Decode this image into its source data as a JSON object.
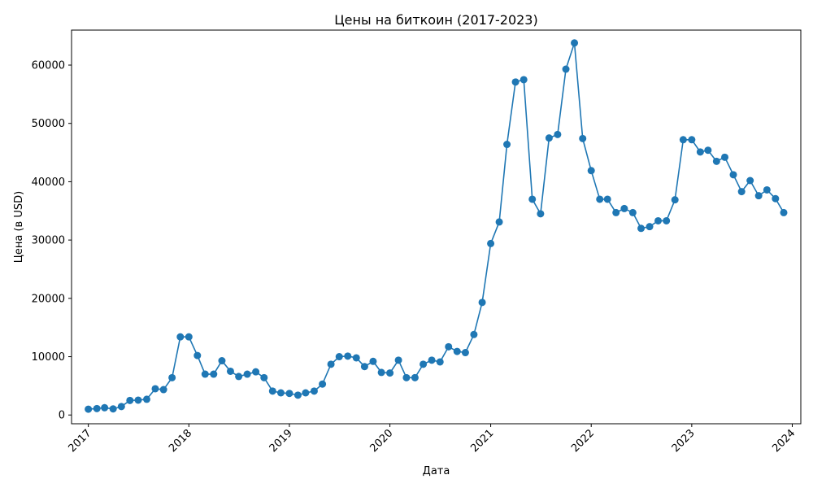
{
  "chart_data": {
    "type": "line",
    "title": "Цены на биткоин (2017-2023)",
    "xlabel": "Дата",
    "ylabel": "Цена (в USD)",
    "xlim": [
      "2016-11-01",
      "2024-02-01"
    ],
    "ylim": [
      -1500,
      66000
    ],
    "x_ticks": [
      "2017",
      "2018",
      "2019",
      "2020",
      "2021",
      "2022",
      "2023",
      "2024"
    ],
    "y_ticks": [
      0,
      10000,
      20000,
      30000,
      40000,
      50000,
      60000
    ],
    "grid": false,
    "markers": true,
    "series": [
      {
        "color": "#1f77b4",
        "x": [
          "2017-01-01",
          "2017-02-01",
          "2017-03-01",
          "2017-04-01",
          "2017-05-01",
          "2017-06-01",
          "2017-07-01",
          "2017-08-01",
          "2017-09-01",
          "2017-10-01",
          "2017-11-01",
          "2017-12-01",
          "2018-01-01",
          "2018-02-01",
          "2018-03-01",
          "2018-04-01",
          "2018-05-01",
          "2018-06-01",
          "2018-07-01",
          "2018-08-01",
          "2018-09-01",
          "2018-10-01",
          "2018-11-01",
          "2018-12-01",
          "2019-01-01",
          "2019-02-01",
          "2019-03-01",
          "2019-04-01",
          "2019-05-01",
          "2019-06-01",
          "2019-07-01",
          "2019-08-01",
          "2019-09-01",
          "2019-10-01",
          "2019-11-01",
          "2019-12-01",
          "2020-01-01",
          "2020-02-01",
          "2020-03-01",
          "2020-04-01",
          "2020-05-01",
          "2020-06-01",
          "2020-07-01",
          "2020-08-01",
          "2020-09-01",
          "2020-10-01",
          "2020-11-01",
          "2020-12-01",
          "2021-01-01",
          "2021-02-01",
          "2021-03-01",
          "2021-04-01",
          "2021-05-01",
          "2021-06-01",
          "2021-07-01",
          "2021-08-01",
          "2021-09-01",
          "2021-10-01",
          "2021-11-01",
          "2021-12-01",
          "2022-01-01",
          "2022-02-01",
          "2022-03-01",
          "2022-04-01",
          "2022-05-01",
          "2022-06-01",
          "2022-07-01",
          "2022-08-01",
          "2022-09-01",
          "2022-10-01",
          "2022-11-01",
          "2022-12-01",
          "2023-01-01",
          "2023-02-01",
          "2023-03-01",
          "2023-04-01",
          "2023-05-01",
          "2023-06-01",
          "2023-07-01",
          "2023-08-01",
          "2023-09-01",
          "2023-10-01",
          "2023-11-01",
          "2023-12-01"
        ],
        "values": [
          1000,
          1100,
          1250,
          1050,
          1450,
          2500,
          2550,
          2700,
          4500,
          4350,
          6400,
          13400,
          13400,
          10200,
          7000,
          7000,
          9300,
          7500,
          6600,
          7000,
          7400,
          6400,
          4100,
          3800,
          3700,
          3400,
          3800,
          4100,
          5300,
          8700,
          10000,
          10100,
          9800,
          8300,
          9200,
          7300,
          7200,
          9400,
          6400,
          6400,
          8700,
          9400,
          9100,
          11700,
          10900,
          10700,
          13800,
          19300,
          29400,
          33100,
          46400,
          57100,
          57500,
          37000,
          34500,
          47500,
          48100,
          59300,
          63800,
          47400,
          41900,
          37000,
          37000,
          34700,
          35400,
          34700,
          32000,
          32300,
          33300,
          33300,
          36900,
          47200,
          47200,
          45100,
          45400,
          43500,
          44200,
          41200,
          38300,
          40200,
          37600,
          38600,
          37100,
          34700
        ]
      }
    ]
  }
}
